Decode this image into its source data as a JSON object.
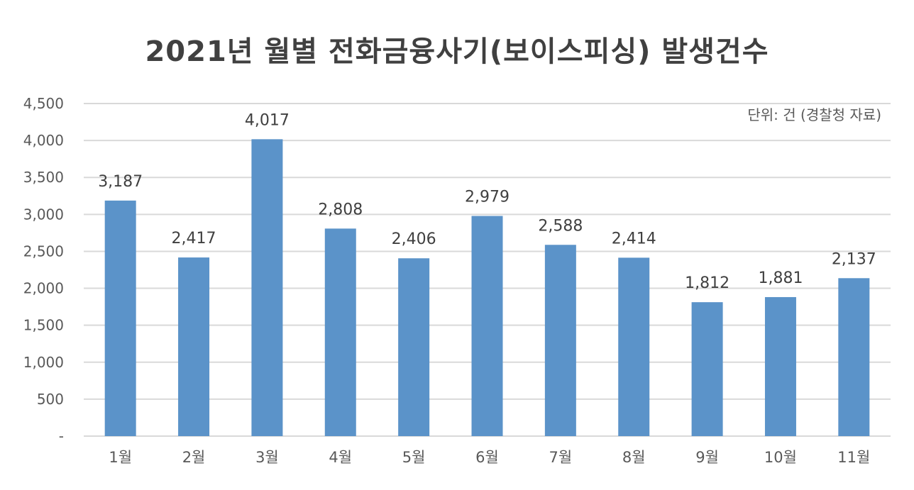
{
  "chart_data": {
    "type": "bar",
    "title": "2021년 월별 전화금융사기(보이스피싱) 발생건수",
    "unit_note": "단위: 건 (경찰청 자료)",
    "categories": [
      "1월",
      "2월",
      "3월",
      "4월",
      "5월",
      "6월",
      "7월",
      "8월",
      "9월",
      "10월",
      "11월"
    ],
    "values": [
      3187,
      2417,
      4017,
      2808,
      2406,
      2979,
      2588,
      2414,
      1812,
      1881,
      2137
    ],
    "value_labels": [
      "3,187",
      "2,417",
      "4,017",
      "2,808",
      "2,406",
      "2,979",
      "2,588",
      "2,414",
      "1,812",
      "1,881",
      "2,137"
    ],
    "y_ticks": [
      0,
      500,
      1000,
      1500,
      2000,
      2500,
      3000,
      3500,
      4000,
      4500
    ],
    "y_tick_labels": [
      "-",
      "500",
      "1,000",
      "1,500",
      "2,000",
      "2,500",
      "3,000",
      "3,500",
      "4,000",
      "4,500"
    ],
    "ylim": [
      0,
      4500
    ],
    "grid": true,
    "bar_color": "#5B93C9",
    "grid_color": "#D9D9D9"
  }
}
